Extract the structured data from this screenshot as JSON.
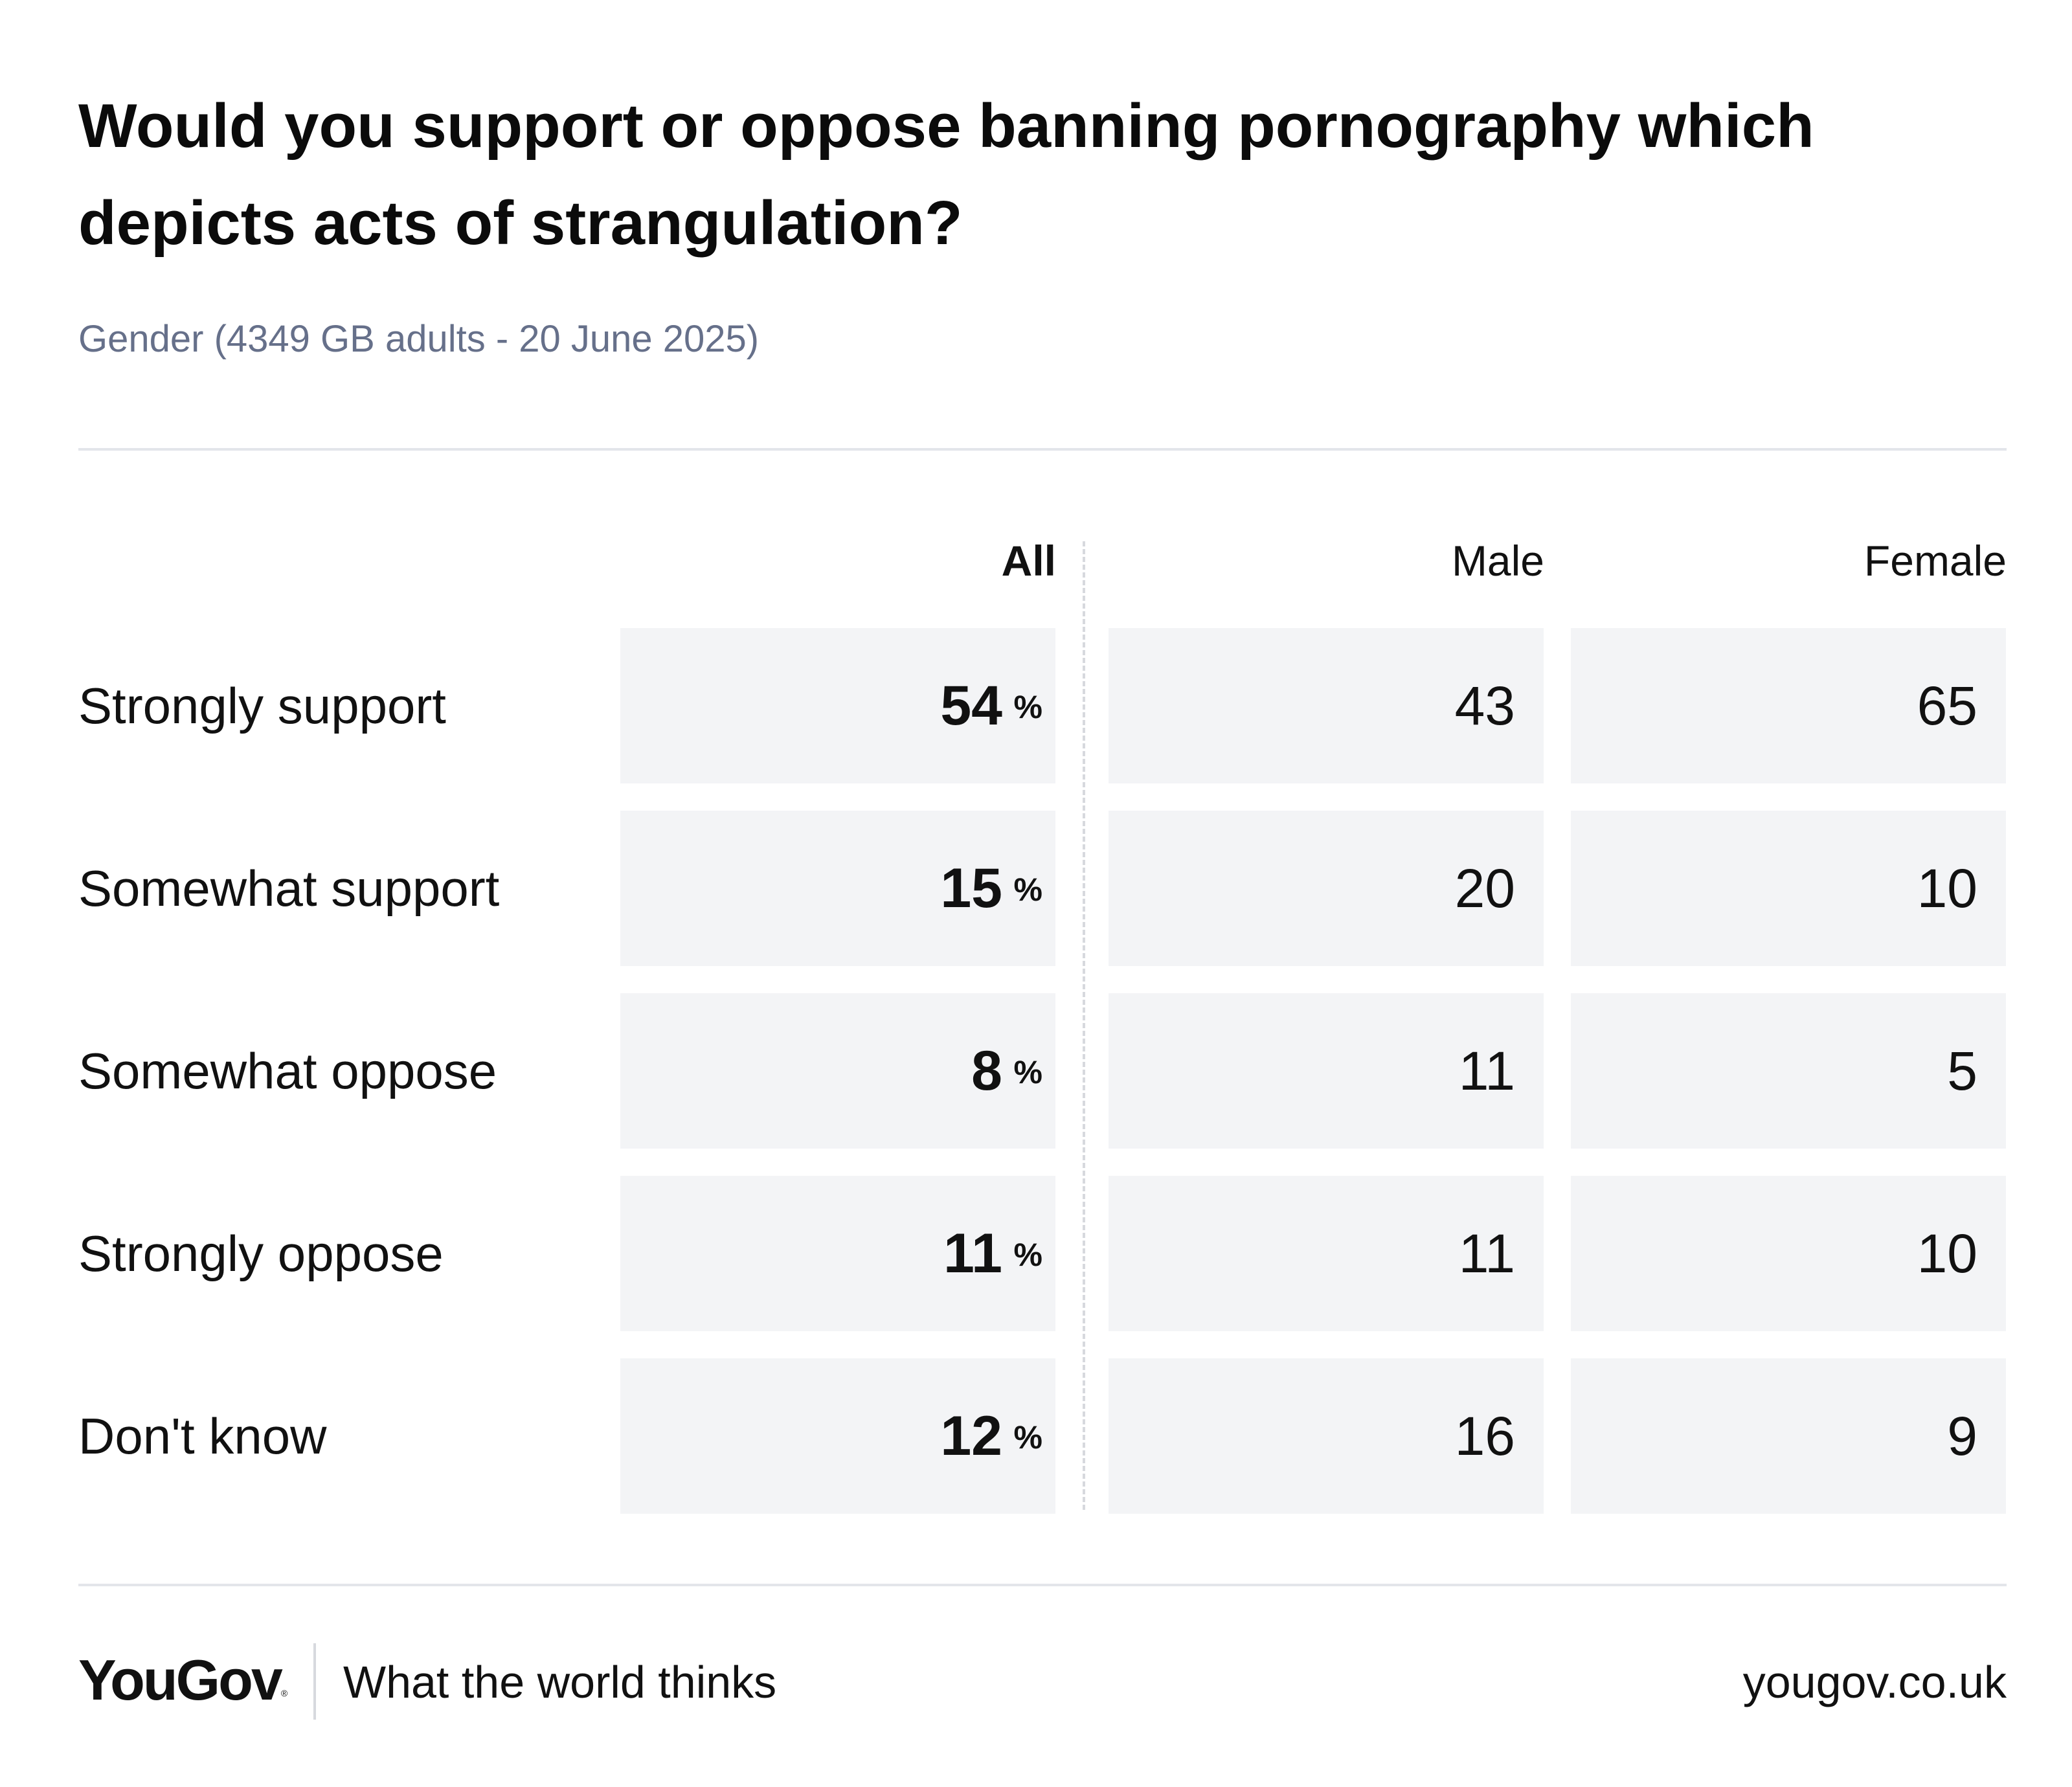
{
  "chart_data": {
    "type": "table",
    "title": "Would you support or oppose banning pornography which depicts acts of strangulation?",
    "subtitle": "Gender (4349 GB adults - 20 June 2025)",
    "columns": [
      "All",
      "Male",
      "Female"
    ],
    "rows": [
      {
        "label": "Strongly support",
        "all": "54",
        "male": "43",
        "female": "65"
      },
      {
        "label": "Somewhat support",
        "all": "15",
        "male": "20",
        "female": "10"
      },
      {
        "label": "Somewhat oppose",
        "all": "8",
        "male": "11",
        "female": "5"
      },
      {
        "label": "Strongly oppose",
        "all": "11",
        "male": "11",
        "female": "10"
      },
      {
        "label": "Don't know",
        "all": "12",
        "male": "16",
        "female": "9"
      }
    ],
    "percent_sign": "%"
  },
  "footer": {
    "logo": "YouGov",
    "logo_mark": "®",
    "tagline": "What the world thinks",
    "url": "yougov.co.uk"
  },
  "colors": {
    "cell_background": "#f3f4f6",
    "subtitle": "#66708a",
    "rule": "#e3e5ea"
  }
}
